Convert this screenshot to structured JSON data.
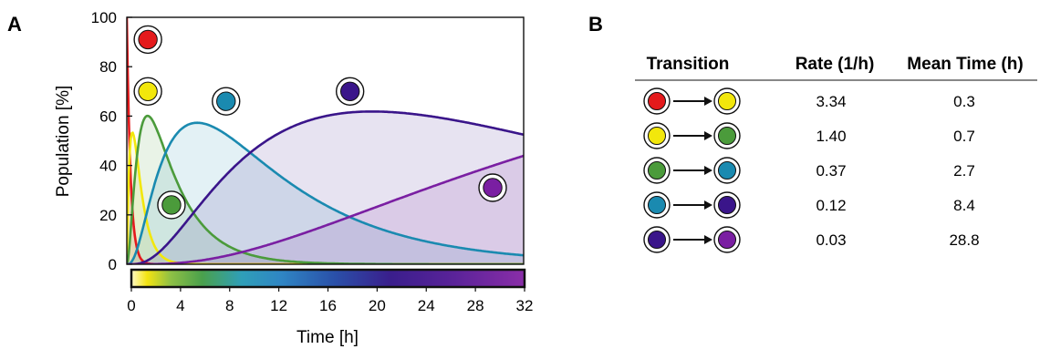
{
  "panels": {
    "a": "A",
    "b": "B"
  },
  "chart_data": {
    "type": "area",
    "xlabel": "Time [h]",
    "ylabel": "Population [%]",
    "xlim": [
      0,
      32
    ],
    "ylim": [
      0,
      100
    ],
    "x_ticks": [
      "0",
      "4",
      "8",
      "12",
      "16",
      "20",
      "24",
      "28",
      "32"
    ],
    "y_ticks": [
      "0",
      "20",
      "40",
      "60",
      "80",
      "100"
    ],
    "colorbar": {
      "from": 0,
      "to": 32,
      "colormap": "yellow-green-blue-purple"
    },
    "rates": [
      3.34,
      1.4,
      0.37,
      0.12,
      0.03
    ],
    "states": [
      {
        "color": "#e41a1c",
        "peak_x": 0.0,
        "peak_y": 100,
        "marker_at": [
          1.7,
          91
        ]
      },
      {
        "color": "#f2e70c",
        "peak_x": 0.6,
        "peak_y": 51,
        "marker_at": [
          1.7,
          70
        ]
      },
      {
        "color": "#4b9b3b",
        "peak_x": 1.7,
        "peak_y": 60,
        "marker_at": [
          3.6,
          24
        ]
      },
      {
        "color": "#1a8ab0",
        "peak_x": 5.4,
        "peak_y": 57,
        "marker_at": [
          8.0,
          66
        ]
      },
      {
        "color": "#3a158a",
        "peak_x": 19.0,
        "peak_y": 59,
        "marker_at": [
          18.0,
          70
        ]
      },
      {
        "color": "#7a1fa2",
        "peak_x": 32.0,
        "peak_y": 48,
        "marker_at": [
          29.5,
          31
        ]
      }
    ],
    "grid": false
  },
  "table": {
    "headers": [
      "Transition",
      "Rate (1/h)",
      "Mean Time (h)"
    ],
    "rows": [
      {
        "from_color": "#e41a1c",
        "to_color": "#f2e70c",
        "rate": "3.34",
        "mean": "0.3"
      },
      {
        "from_color": "#f2e70c",
        "to_color": "#4b9b3b",
        "rate": "1.40",
        "mean": "0.7"
      },
      {
        "from_color": "#4b9b3b",
        "to_color": "#1a8ab0",
        "rate": "0.37",
        "mean": "2.7"
      },
      {
        "from_color": "#1a8ab0",
        "to_color": "#3a158a",
        "rate": "0.12",
        "mean": "8.4"
      },
      {
        "from_color": "#3a158a",
        "to_color": "#7a1fa2",
        "rate": "0.03",
        "mean": "28.8"
      }
    ]
  }
}
